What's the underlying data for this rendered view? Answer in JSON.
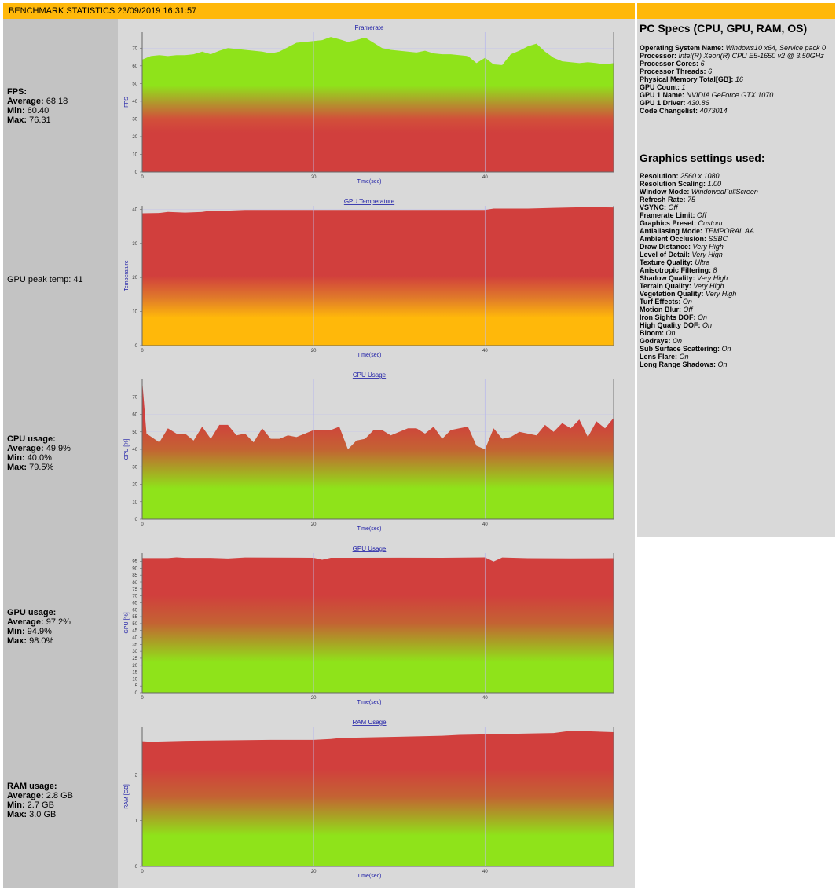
{
  "header": {
    "title": "BENCHMARK STATISTICS 23/09/2019 16:31:57"
  },
  "stats": {
    "fps": {
      "heading": "FPS:",
      "avg_label": "Average:",
      "avg": "68.18",
      "min_label": "Min:",
      "min": "60.40",
      "max_label": "Max:",
      "max": "76.31"
    },
    "gpu_temp": {
      "label": "GPU peak temp:",
      "value": "41"
    },
    "cpu": {
      "heading": "CPU usage:",
      "avg_label": "Average:",
      "avg": "49.9%",
      "min_label": "Min:",
      "min": "40.0%",
      "max_label": "Max:",
      "max": "79.5%"
    },
    "gpu": {
      "heading": "GPU usage:",
      "avg_label": "Average:",
      "avg": "97.2%",
      "min_label": "Min:",
      "min": "94.9%",
      "max_label": "Max:",
      "max": "98.0%"
    },
    "ram": {
      "heading": "RAM usage:",
      "avg_label": "Average:",
      "avg": "2.8 GB",
      "min_label": "Min:",
      "min": "2.7 GB",
      "max_label": "Max:",
      "max": "3.0 GB"
    }
  },
  "specs": {
    "title": "PC Specs (CPU, GPU, RAM, OS)",
    "items": [
      {
        "label": "Operating System Name:",
        "value": "Windows10 x64, Service pack 0"
      },
      {
        "label": "Processor:",
        "value": "Intel(R) Xeon(R) CPU E5-1650 v2 @ 3.50GHz"
      },
      {
        "label": "Processor Cores:",
        "value": "6"
      },
      {
        "label": "Processor Threads:",
        "value": "6"
      },
      {
        "label": "Physical Memory Total[GB]:",
        "value": "16"
      },
      {
        "label": "GPU Count:",
        "value": "1"
      },
      {
        "label": "GPU 1 Name:",
        "value": "NVIDIA GeForce GTX 1070"
      },
      {
        "label": "GPU 1 Driver:",
        "value": "430.86"
      },
      {
        "label": "Code Changelist:",
        "value": "4073014"
      }
    ]
  },
  "graphics": {
    "title": "Graphics settings used:",
    "items": [
      {
        "label": "Resolution:",
        "value": "2560 x 1080"
      },
      {
        "label": "Resolution Scaling:",
        "value": "1.00"
      },
      {
        "label": "Window Mode:",
        "value": "WindowedFullScreen"
      },
      {
        "label": "Refresh Rate:",
        "value": "75"
      },
      {
        "label": "VSYNC:",
        "value": "Off"
      },
      {
        "label": "Framerate Limit:",
        "value": "Off"
      },
      {
        "label": "Graphics Preset:",
        "value": "Custom"
      },
      {
        "label": "Antialiasing Mode:",
        "value": "TEMPORAL AA"
      },
      {
        "label": "Ambient Occlusion:",
        "value": "SSBC"
      },
      {
        "label": "Draw Distance:",
        "value": "Very High"
      },
      {
        "label": "Level of Detail:",
        "value": "Very High"
      },
      {
        "label": "Texture Quality:",
        "value": "Ultra"
      },
      {
        "label": "Anisotropic Filtering:",
        "value": "8"
      },
      {
        "label": "Shadow Quality:",
        "value": "Very High"
      },
      {
        "label": "Terrain Quality:",
        "value": "Very High"
      },
      {
        "label": "Vegetation Quality:",
        "value": "Very High"
      },
      {
        "label": "Turf Effects:",
        "value": "On"
      },
      {
        "label": "Motion Blur:",
        "value": "Off"
      },
      {
        "label": "Iron Sights DOF:",
        "value": "On"
      },
      {
        "label": "High Quality DOF:",
        "value": "On"
      },
      {
        "label": "Bloom:",
        "value": "On"
      },
      {
        "label": "Godrays:",
        "value": "On"
      },
      {
        "label": "Sub Surface Scattering:",
        "value": "On"
      },
      {
        "label": "Lens Flare:",
        "value": "On"
      },
      {
        "label": "Long Range Shadows:",
        "value": "On"
      }
    ]
  },
  "chart_data": [
    {
      "type": "area",
      "title": "Framerate",
      "xlabel": "Time(sec)",
      "ylabel": "FPS",
      "xlim": [
        0,
        55
      ],
      "ylim": [
        0,
        79
      ],
      "xticks": [
        0,
        20,
        40
      ],
      "yticks": [
        0,
        10,
        20,
        30,
        40,
        50,
        60,
        70
      ],
      "gradient": "green-top",
      "x": [
        0,
        1,
        2,
        3,
        4,
        5,
        6,
        7,
        8,
        9,
        10,
        11,
        12,
        13,
        14,
        15,
        16,
        17,
        18,
        19,
        20,
        21,
        22,
        23,
        24,
        25,
        26,
        27,
        28,
        29,
        30,
        31,
        32,
        33,
        34,
        35,
        36,
        37,
        38,
        39,
        40,
        41,
        42,
        43,
        44,
        45,
        46,
        47,
        48,
        49,
        50,
        51,
        52,
        53,
        54,
        55
      ],
      "y": [
        63.5,
        65.5,
        66,
        65.5,
        66,
        66,
        66.5,
        68,
        66.5,
        68.5,
        70,
        69.5,
        69,
        68.5,
        68,
        67,
        68,
        70.5,
        73,
        73.5,
        74,
        74.5,
        76.3,
        75,
        73.5,
        74.5,
        76,
        73,
        70,
        69,
        68.5,
        68,
        67.5,
        68.5,
        67,
        66.5,
        66.5,
        66,
        65.5,
        61.5,
        64.5,
        60.8,
        60.4,
        66.5,
        68.5,
        71,
        72.5,
        68,
        64.5,
        62.5,
        62,
        61.5,
        62,
        61.5,
        60.8,
        61.5
      ]
    },
    {
      "type": "area",
      "title": "GPU Temperature",
      "xlabel": "Time(sec)",
      "ylabel": "Temperature",
      "xlim": [
        0,
        55
      ],
      "ylim": [
        0,
        41
      ],
      "xticks": [
        0,
        20,
        40
      ],
      "yticks": [
        0,
        10,
        20,
        30,
        40
      ],
      "gradient": "orange-bottom",
      "x": [
        0,
        2,
        3,
        5,
        7,
        8,
        10,
        12,
        20,
        40,
        41,
        45,
        48,
        50,
        52,
        55
      ],
      "y": [
        38.8,
        38.9,
        39.2,
        39,
        39.2,
        39.6,
        39.6,
        39.8,
        39.8,
        39.8,
        40.2,
        40.2,
        40.4,
        40.5,
        40.6,
        40.5
      ]
    },
    {
      "type": "area",
      "title": "CPU Usage",
      "xlabel": "Time(sec)",
      "ylabel": "CPU [%]",
      "xlim": [
        0,
        55
      ],
      "ylim": [
        0,
        80
      ],
      "xticks": [
        0,
        20,
        40
      ],
      "yticks": [
        0,
        10,
        20,
        30,
        40,
        50,
        60,
        70
      ],
      "gradient": "green-bottom",
      "x": [
        0,
        0.5,
        2,
        3,
        4,
        5,
        6,
        7,
        8,
        9,
        10,
        11,
        12,
        13,
        14,
        15,
        16,
        17,
        18,
        19,
        20,
        21,
        22,
        23,
        24,
        25,
        26,
        27,
        28,
        29,
        30,
        31,
        32,
        33,
        34,
        35,
        36,
        37,
        38,
        39,
        40,
        41,
        42,
        43,
        44,
        45,
        46,
        47,
        48,
        49,
        50,
        51,
        52,
        53,
        54,
        55
      ],
      "y": [
        79.5,
        49,
        44,
        52,
        49,
        49,
        45,
        53,
        46,
        54,
        54,
        48,
        49,
        44,
        52,
        46,
        46,
        48,
        47,
        49,
        51,
        51,
        51,
        53,
        40,
        45,
        46,
        51,
        51,
        48,
        50,
        52,
        52,
        49,
        53,
        46,
        51,
        52,
        53,
        42,
        40,
        52,
        46,
        47,
        50,
        49,
        48,
        54,
        50,
        55,
        52,
        57,
        47,
        56,
        52,
        58
      ]
    },
    {
      "type": "area",
      "title": "GPU Usage",
      "xlabel": "Time(sec)",
      "ylabel": "GPU [%]",
      "xlim": [
        0,
        55
      ],
      "ylim": [
        0,
        101
      ],
      "xticks": [
        0,
        20,
        40
      ],
      "yticks": [
        0,
        5,
        10,
        15,
        20,
        25,
        30,
        35,
        40,
        45,
        50,
        55,
        60,
        65,
        70,
        75,
        80,
        85,
        90,
        95
      ],
      "gradient": "green-bottom",
      "x": [
        0,
        3,
        4,
        5,
        8,
        10,
        12,
        20,
        21,
        22,
        25,
        30,
        35,
        40,
        41,
        42,
        45,
        50,
        55
      ],
      "y": [
        97.4,
        97.4,
        97.9,
        97.5,
        97.5,
        97.1,
        97.8,
        97.6,
        96.2,
        97.6,
        97.6,
        97.7,
        97.6,
        97.9,
        94.9,
        97.8,
        97.3,
        97.2,
        97.3
      ]
    },
    {
      "type": "area",
      "title": "RAM Usage",
      "xlabel": "Time(sec)",
      "ylabel": "RAM [GB]",
      "xlim": [
        0,
        55
      ],
      "ylim": [
        0,
        3.05
      ],
      "xticks": [
        0,
        20,
        40
      ],
      "yticks": [
        0,
        1,
        2
      ],
      "gradient": "green-bottom",
      "x": [
        0,
        1,
        5,
        10,
        15,
        20,
        22,
        23,
        25,
        30,
        35,
        37,
        40,
        45,
        48,
        50,
        52,
        55
      ],
      "y": [
        2.73,
        2.72,
        2.74,
        2.75,
        2.76,
        2.76,
        2.78,
        2.8,
        2.81,
        2.83,
        2.85,
        2.87,
        2.88,
        2.9,
        2.91,
        2.96,
        2.95,
        2.93
      ]
    }
  ]
}
